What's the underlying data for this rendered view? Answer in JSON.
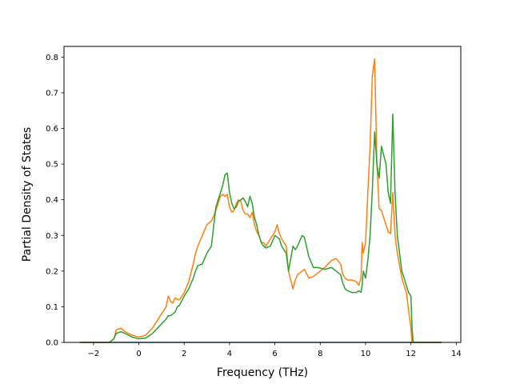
{
  "chart_data": {
    "type": "line",
    "title": "",
    "xlabel": "Frequency (THz)",
    "ylabel": "Partial Density of States",
    "xlim": [
      -3.3,
      14.2
    ],
    "ylim": [
      0.0,
      0.83
    ],
    "xticks": [
      -2,
      0,
      2,
      4,
      6,
      8,
      10,
      12,
      14
    ],
    "yticks": [
      0.0,
      0.1,
      0.2,
      0.3,
      0.4,
      0.5,
      0.6,
      0.7,
      0.8
    ],
    "grid": false,
    "legend": "none",
    "series": [
      {
        "color": "#1f77b4",
        "x": [
          -2.6,
          13.35
        ],
        "y": [
          0.0,
          0.0
        ]
      },
      {
        "color": "#ff7f0e",
        "x": [
          -2.6,
          -1.3,
          -1.1,
          -1.0,
          -0.8,
          -0.6,
          -0.3,
          0.0,
          0.3,
          0.6,
          0.9,
          1.2,
          1.3,
          1.4,
          1.5,
          1.6,
          1.7,
          1.8,
          2.0,
          2.2,
          2.4,
          2.5,
          2.6,
          2.8,
          3.0,
          3.2,
          3.4,
          3.6,
          3.7,
          3.8,
          3.9,
          4.0,
          4.1,
          4.2,
          4.3,
          4.4,
          4.5,
          4.6,
          4.7,
          4.8,
          4.9,
          5.0,
          5.1,
          5.2,
          5.3,
          5.4,
          5.5,
          5.6,
          5.8,
          6.0,
          6.1,
          6.2,
          6.3,
          6.5,
          6.6,
          6.8,
          6.9,
          7.0,
          7.2,
          7.3,
          7.5,
          7.7,
          7.9,
          8.2,
          8.5,
          8.7,
          8.9,
          9.0,
          9.1,
          9.2,
          9.4,
          9.6,
          9.7,
          9.8,
          9.85,
          9.9,
          10.0,
          10.1,
          10.2,
          10.3,
          10.4,
          10.5,
          10.6,
          10.7,
          10.9,
          11.0,
          11.1,
          11.2,
          11.3,
          11.4,
          11.6,
          11.8,
          11.9,
          12.0,
          12.05,
          12.1,
          13.35
        ],
        "y": [
          0.0,
          0.0,
          0.01,
          0.035,
          0.04,
          0.03,
          0.02,
          0.015,
          0.02,
          0.04,
          0.07,
          0.1,
          0.13,
          0.115,
          0.11,
          0.125,
          0.12,
          0.12,
          0.14,
          0.17,
          0.22,
          0.25,
          0.27,
          0.3,
          0.33,
          0.34,
          0.37,
          0.41,
          0.415,
          0.41,
          0.415,
          0.38,
          0.365,
          0.37,
          0.39,
          0.4,
          0.395,
          0.37,
          0.36,
          0.36,
          0.35,
          0.365,
          0.33,
          0.31,
          0.3,
          0.28,
          0.28,
          0.27,
          0.29,
          0.31,
          0.33,
          0.305,
          0.29,
          0.27,
          0.2,
          0.15,
          0.175,
          0.19,
          0.2,
          0.205,
          0.18,
          0.185,
          0.195,
          0.21,
          0.23,
          0.235,
          0.22,
          0.19,
          0.18,
          0.175,
          0.175,
          0.17,
          0.16,
          0.18,
          0.28,
          0.25,
          0.28,
          0.42,
          0.55,
          0.75,
          0.795,
          0.5,
          0.375,
          0.37,
          0.33,
          0.31,
          0.305,
          0.42,
          0.3,
          0.25,
          0.18,
          0.14,
          0.09,
          0.04,
          0.0,
          0.0,
          0.0
        ]
      },
      {
        "color": "#2ca02c",
        "x": [
          -2.6,
          -1.3,
          -1.1,
          -1.0,
          -0.8,
          -0.6,
          -0.3,
          0.0,
          0.3,
          0.6,
          0.9,
          1.2,
          1.3,
          1.4,
          1.5,
          1.6,
          1.7,
          1.8,
          2.0,
          2.2,
          2.4,
          2.5,
          2.6,
          2.8,
          3.0,
          3.2,
          3.4,
          3.6,
          3.7,
          3.8,
          3.9,
          4.0,
          4.1,
          4.2,
          4.3,
          4.4,
          4.5,
          4.6,
          4.7,
          4.8,
          4.9,
          5.0,
          5.1,
          5.2,
          5.3,
          5.4,
          5.5,
          5.6,
          5.8,
          6.0,
          6.1,
          6.2,
          6.3,
          6.5,
          6.6,
          6.8,
          6.9,
          7.0,
          7.2,
          7.3,
          7.5,
          7.7,
          7.9,
          8.2,
          8.5,
          8.7,
          8.9,
          9.0,
          9.1,
          9.2,
          9.4,
          9.6,
          9.7,
          9.8,
          9.85,
          9.9,
          10.0,
          10.1,
          10.2,
          10.3,
          10.4,
          10.5,
          10.6,
          10.7,
          10.9,
          11.0,
          11.1,
          11.2,
          11.3,
          11.4,
          11.6,
          11.8,
          11.9,
          12.0,
          12.05,
          12.1,
          13.35
        ],
        "y": [
          0.0,
          0.0,
          0.01,
          0.025,
          0.03,
          0.025,
          0.015,
          0.01,
          0.012,
          0.025,
          0.045,
          0.065,
          0.075,
          0.075,
          0.08,
          0.085,
          0.1,
          0.105,
          0.13,
          0.15,
          0.18,
          0.2,
          0.215,
          0.22,
          0.25,
          0.27,
          0.38,
          0.42,
          0.44,
          0.47,
          0.475,
          0.42,
          0.39,
          0.375,
          0.38,
          0.395,
          0.4,
          0.405,
          0.395,
          0.38,
          0.41,
          0.39,
          0.35,
          0.33,
          0.3,
          0.28,
          0.27,
          0.265,
          0.27,
          0.3,
          0.295,
          0.29,
          0.27,
          0.25,
          0.2,
          0.27,
          0.26,
          0.27,
          0.3,
          0.295,
          0.24,
          0.21,
          0.21,
          0.205,
          0.21,
          0.2,
          0.19,
          0.165,
          0.15,
          0.145,
          0.14,
          0.14,
          0.145,
          0.14,
          0.16,
          0.2,
          0.18,
          0.23,
          0.3,
          0.43,
          0.59,
          0.5,
          0.46,
          0.55,
          0.5,
          0.42,
          0.39,
          0.64,
          0.42,
          0.3,
          0.2,
          0.16,
          0.14,
          0.13,
          0.04,
          0.0,
          0.0
        ]
      }
    ]
  }
}
